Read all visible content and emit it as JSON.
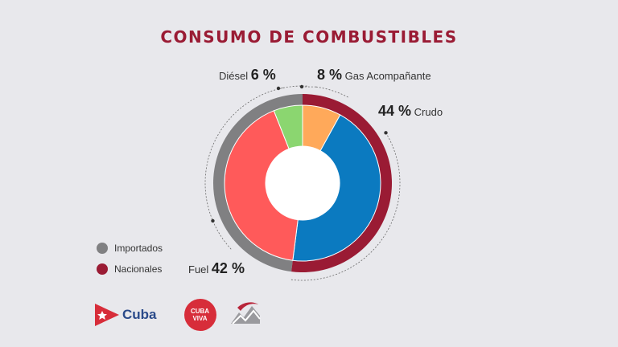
{
  "title": "CONSUMO DE COMBUSTIBLES",
  "colors": {
    "title": "#9a1b34",
    "importados": "#808082",
    "nacionales": "#9a1b34",
    "crudo": "#0b7ac0",
    "fuel": "#ff5a5a",
    "diesel": "#8bd670",
    "gas": "#ffa95a",
    "hole": "#ffffff"
  },
  "labels": {
    "diesel": {
      "name": "Diésel",
      "pct": "6 %"
    },
    "gas": {
      "name": "Gas Acompañante",
      "pct": "8 %"
    },
    "crudo": {
      "name": "Crudo",
      "pct": "44 %"
    },
    "fuel": {
      "name": "Fuel",
      "pct": "42 %"
    }
  },
  "legend": [
    {
      "label": "Importados",
      "color": "#808082"
    },
    {
      "label": "Nacionales",
      "color": "#9a1b34"
    }
  ],
  "logos": {
    "cuba": "Cuba",
    "cuba_viva_1": "CUBA",
    "cuba_viva_2": "VIVA"
  },
  "chart_data": {
    "type": "pie",
    "title": "CONSUMO DE COMBUSTIBLES",
    "slices": [
      {
        "name": "Crudo",
        "value": 44,
        "group": "Nacionales",
        "color": "#0b7ac0"
      },
      {
        "name": "Fuel",
        "value": 42,
        "group": "Importados",
        "color": "#ff5a5a"
      },
      {
        "name": "Diésel",
        "value": 6,
        "group": "Importados",
        "color": "#8bd670"
      },
      {
        "name": "Gas Acompañante",
        "value": 8,
        "group": "Nacionales",
        "color": "#ffa95a"
      }
    ],
    "groups": [
      {
        "name": "Importados",
        "values": [
          "Fuel",
          "Diésel"
        ],
        "color": "#808082"
      },
      {
        "name": "Nacionales",
        "values": [
          "Gas Acompañante",
          "Crudo"
        ],
        "color": "#9a1b34"
      }
    ],
    "legend_position": "bottom-left"
  }
}
